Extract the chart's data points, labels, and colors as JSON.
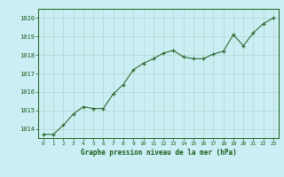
{
  "x": [
    0,
    1,
    2,
    3,
    4,
    5,
    6,
    7,
    8,
    9,
    10,
    11,
    12,
    13,
    14,
    15,
    16,
    17,
    18,
    19,
    20,
    21,
    22,
    23
  ],
  "y": [
    1013.7,
    1013.7,
    1014.2,
    1014.8,
    1015.2,
    1015.1,
    1015.1,
    1015.9,
    1016.4,
    1017.2,
    1017.55,
    1017.8,
    1018.1,
    1018.25,
    1017.9,
    1017.8,
    1017.8,
    1018.05,
    1018.2,
    1019.1,
    1018.5,
    1019.2,
    1019.7,
    1020.0
  ],
  "line_color": "#2d6a2d",
  "marker_color": "#2d6a2d",
  "bg_color": "#cbeef5",
  "grid_color": "#b0d8cc",
  "xlabel": "Graphe pression niveau de la mer (hPa)",
  "xlabel_color": "#1a5c1a",
  "tick_color": "#1a5c1a",
  "ylim": [
    1013.5,
    1020.5
  ],
  "yticks": [
    1014,
    1015,
    1016,
    1017,
    1018,
    1019,
    1020
  ],
  "xticks": [
    0,
    1,
    2,
    3,
    4,
    5,
    6,
    7,
    8,
    9,
    10,
    11,
    12,
    13,
    14,
    15,
    16,
    17,
    18,
    19,
    20,
    21,
    22,
    23
  ]
}
